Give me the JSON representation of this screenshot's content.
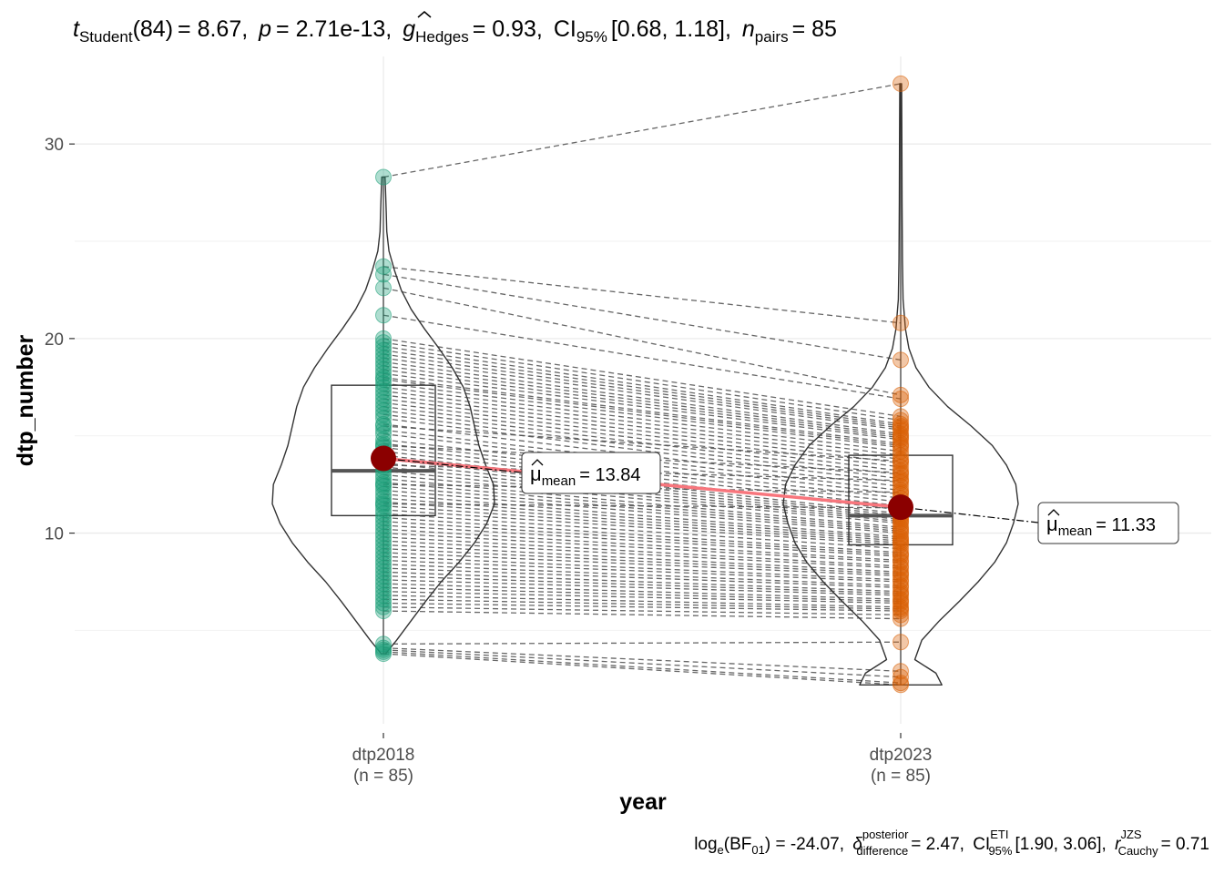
{
  "chart_data": {
    "type": "violin",
    "title": "t Student (84) = 8.67, p = 2.71e-13, g Hedges = 0.93, CI 95% [0.68, 1.18], n pairs = 85",
    "title_parts": {
      "stat_symbol": "t",
      "stat_sub": "Student",
      "df": "(84)",
      "stat_value": "= 8.67,",
      "p_symbol": "p",
      "p_value": "= 2.71e-13,",
      "es_symbol": "g",
      "es_sub": "Hedges",
      "es_value": "= 0.93,",
      "ci_symbol": "CI",
      "ci_sub": "95%",
      "ci_value": "[0.68, 1.18],",
      "n_symbol": "n",
      "n_sub": "pairs",
      "n_value": "= 85"
    },
    "caption": "log e (BF 01) = -24.07, δ posterior difference = 2.47, CI ETI 95% [1.90, 3.06], r JZS Cauchy = 0.71",
    "caption_parts": {
      "log_text": "log",
      "log_sub": "e",
      "bf_open": "(BF",
      "bf_sub": "01",
      "bf_value": ") = -24.07,",
      "delta_symbol": "δ",
      "delta_sup": "posterior",
      "delta_sub": "difference",
      "delta_value": "= 2.47,",
      "ci_text": "CI",
      "ci_sup": "ETI",
      "ci_sub": "95%",
      "ci_value": "[1.90, 3.06],",
      "r_symbol": "r",
      "r_sup": "JZS",
      "r_sub": "Cauchy",
      "r_value": "= 0.71"
    },
    "xlabel": "year",
    "ylabel": "dtp_number",
    "ylim": [
      0.2,
      34.5
    ],
    "yticks": [
      10,
      20,
      30
    ],
    "grid": true,
    "groups": [
      {
        "name": "dtp2018",
        "n_label": "(n = 85)",
        "mean": 13.84,
        "mean_label_symbol": "μ",
        "mean_label_sub": "mean",
        "mean_label_value": "= 13.84",
        "box": {
          "q1": 10.9,
          "median": 13.2,
          "q3": 17.6,
          "min": 3.8,
          "max": 28.3
        }
      },
      {
        "name": "dtp2023",
        "n_label": "(n = 85)",
        "mean": 11.33,
        "mean_label_symbol": "μ",
        "mean_label_sub": "mean",
        "mean_label_value": "= 11.33",
        "box": {
          "q1": 9.4,
          "median": 10.9,
          "q3": 14.0,
          "min": 2.2,
          "max": 33.1
        }
      }
    ],
    "pairs": [
      [
        28.3,
        33.1
      ],
      [
        23.7,
        20.8
      ],
      [
        23.3,
        18.9
      ],
      [
        22.6,
        17.1
      ],
      [
        21.2,
        16.9
      ],
      [
        20.0,
        16.0
      ],
      [
        19.8,
        15.8
      ],
      [
        19.6,
        15.6
      ],
      [
        19.4,
        15.5
      ],
      [
        19.2,
        15.4
      ],
      [
        19.0,
        15.3
      ],
      [
        18.8,
        15.1
      ],
      [
        18.6,
        15.0
      ],
      [
        18.4,
        14.9
      ],
      [
        18.2,
        14.8
      ],
      [
        18.0,
        14.6
      ],
      [
        17.9,
        14.5
      ],
      [
        17.7,
        14.4
      ],
      [
        17.5,
        14.2
      ],
      [
        17.3,
        14.0
      ],
      [
        17.1,
        13.8
      ],
      [
        16.9,
        13.6
      ],
      [
        16.7,
        13.4
      ],
      [
        16.5,
        13.2
      ],
      [
        16.3,
        13.0
      ],
      [
        16.1,
        12.8
      ],
      [
        15.9,
        12.6
      ],
      [
        15.6,
        12.4
      ],
      [
        15.3,
        12.2
      ],
      [
        15.1,
        12.0
      ],
      [
        14.8,
        11.8
      ],
      [
        14.6,
        11.6
      ],
      [
        14.4,
        11.4
      ],
      [
        14.2,
        11.2
      ],
      [
        14.0,
        11.0
      ],
      [
        13.8,
        10.9
      ],
      [
        13.6,
        10.8
      ],
      [
        13.4,
        10.7
      ],
      [
        13.2,
        10.6
      ],
      [
        13.0,
        10.5
      ],
      [
        12.8,
        10.3
      ],
      [
        12.6,
        10.2
      ],
      [
        12.4,
        10.1
      ],
      [
        12.2,
        10.0
      ],
      [
        12.0,
        9.8
      ],
      [
        11.8,
        9.7
      ],
      [
        11.6,
        9.6
      ],
      [
        11.4,
        9.5
      ],
      [
        11.2,
        9.4
      ],
      [
        11.0,
        9.2
      ],
      [
        10.8,
        9.0
      ],
      [
        10.6,
        8.9
      ],
      [
        10.4,
        8.8
      ],
      [
        10.2,
        8.6
      ],
      [
        10.0,
        8.5
      ],
      [
        9.8,
        8.3
      ],
      [
        9.6,
        8.2
      ],
      [
        9.4,
        8.0
      ],
      [
        9.2,
        7.9
      ],
      [
        9.0,
        7.8
      ],
      [
        8.8,
        7.6
      ],
      [
        8.6,
        7.5
      ],
      [
        8.4,
        7.3
      ],
      [
        8.2,
        7.2
      ],
      [
        8.0,
        7.0
      ],
      [
        7.8,
        6.9
      ],
      [
        7.6,
        6.8
      ],
      [
        7.4,
        6.6
      ],
      [
        7.2,
        6.5
      ],
      [
        7.0,
        6.4
      ],
      [
        6.8,
        6.2
      ],
      [
        6.6,
        6.1
      ],
      [
        6.4,
        6.0
      ],
      [
        6.2,
        5.8
      ],
      [
        6.0,
        5.6
      ],
      [
        11.5,
        11.3
      ],
      [
        12.5,
        12.1
      ],
      [
        13.5,
        12.7
      ],
      [
        14.5,
        13.1
      ],
      [
        15.5,
        13.7
      ],
      [
        4.3,
        4.4
      ],
      [
        4.1,
        2.9
      ],
      [
        4.0,
        2.6
      ],
      [
        3.9,
        2.3
      ],
      [
        3.8,
        2.2
      ]
    ],
    "violins": [
      {
        "group": "dtp2018",
        "profile": [
          [
            3.8,
            0.02
          ],
          [
            4.5,
            0.12
          ],
          [
            5.5,
            0.25
          ],
          [
            6.5,
            0.38
          ],
          [
            7.5,
            0.52
          ],
          [
            8.5,
            0.68
          ],
          [
            9.5,
            0.82
          ],
          [
            10.5,
            0.93
          ],
          [
            11.5,
            1.0
          ],
          [
            12.5,
            0.99
          ],
          [
            13.5,
            0.92
          ],
          [
            14.5,
            0.86
          ],
          [
            15.5,
            0.82
          ],
          [
            16.5,
            0.78
          ],
          [
            17.5,
            0.72
          ],
          [
            18.5,
            0.62
          ],
          [
            19.5,
            0.5
          ],
          [
            20.5,
            0.37
          ],
          [
            21.5,
            0.25
          ],
          [
            22.5,
            0.16
          ],
          [
            23.5,
            0.1
          ],
          [
            24.5,
            0.05
          ],
          [
            25.5,
            0.03
          ],
          [
            26.5,
            0.025
          ],
          [
            27.5,
            0.02
          ],
          [
            28.3,
            0.015
          ]
        ]
      },
      {
        "group": "dtp2023",
        "profile": [
          [
            2.2,
            0.35
          ],
          [
            2.8,
            0.3
          ],
          [
            3.5,
            0.12
          ],
          [
            4.5,
            0.18
          ],
          [
            5.5,
            0.33
          ],
          [
            6.5,
            0.5
          ],
          [
            7.5,
            0.66
          ],
          [
            8.5,
            0.8
          ],
          [
            9.5,
            0.9
          ],
          [
            10.5,
            0.96
          ],
          [
            11.5,
            1.0
          ],
          [
            12.5,
            0.98
          ],
          [
            13.5,
            0.9
          ],
          [
            14.5,
            0.78
          ],
          [
            15.5,
            0.6
          ],
          [
            16.5,
            0.4
          ],
          [
            17.5,
            0.24
          ],
          [
            18.5,
            0.13
          ],
          [
            19.5,
            0.07
          ],
          [
            20.5,
            0.04
          ],
          [
            22.0,
            0.02
          ],
          [
            24.0,
            0.015
          ],
          [
            27.0,
            0.012
          ],
          [
            30.0,
            0.01
          ],
          [
            33.1,
            0.008
          ]
        ]
      }
    ],
    "colors": {
      "group1_points": "#1b9e77",
      "group2_points": "#d95f02",
      "mean_point": "#8b0000",
      "mean_line": "#f8767d",
      "grid": "#ebebeb",
      "pair_lines": "#4d4d4d"
    }
  }
}
